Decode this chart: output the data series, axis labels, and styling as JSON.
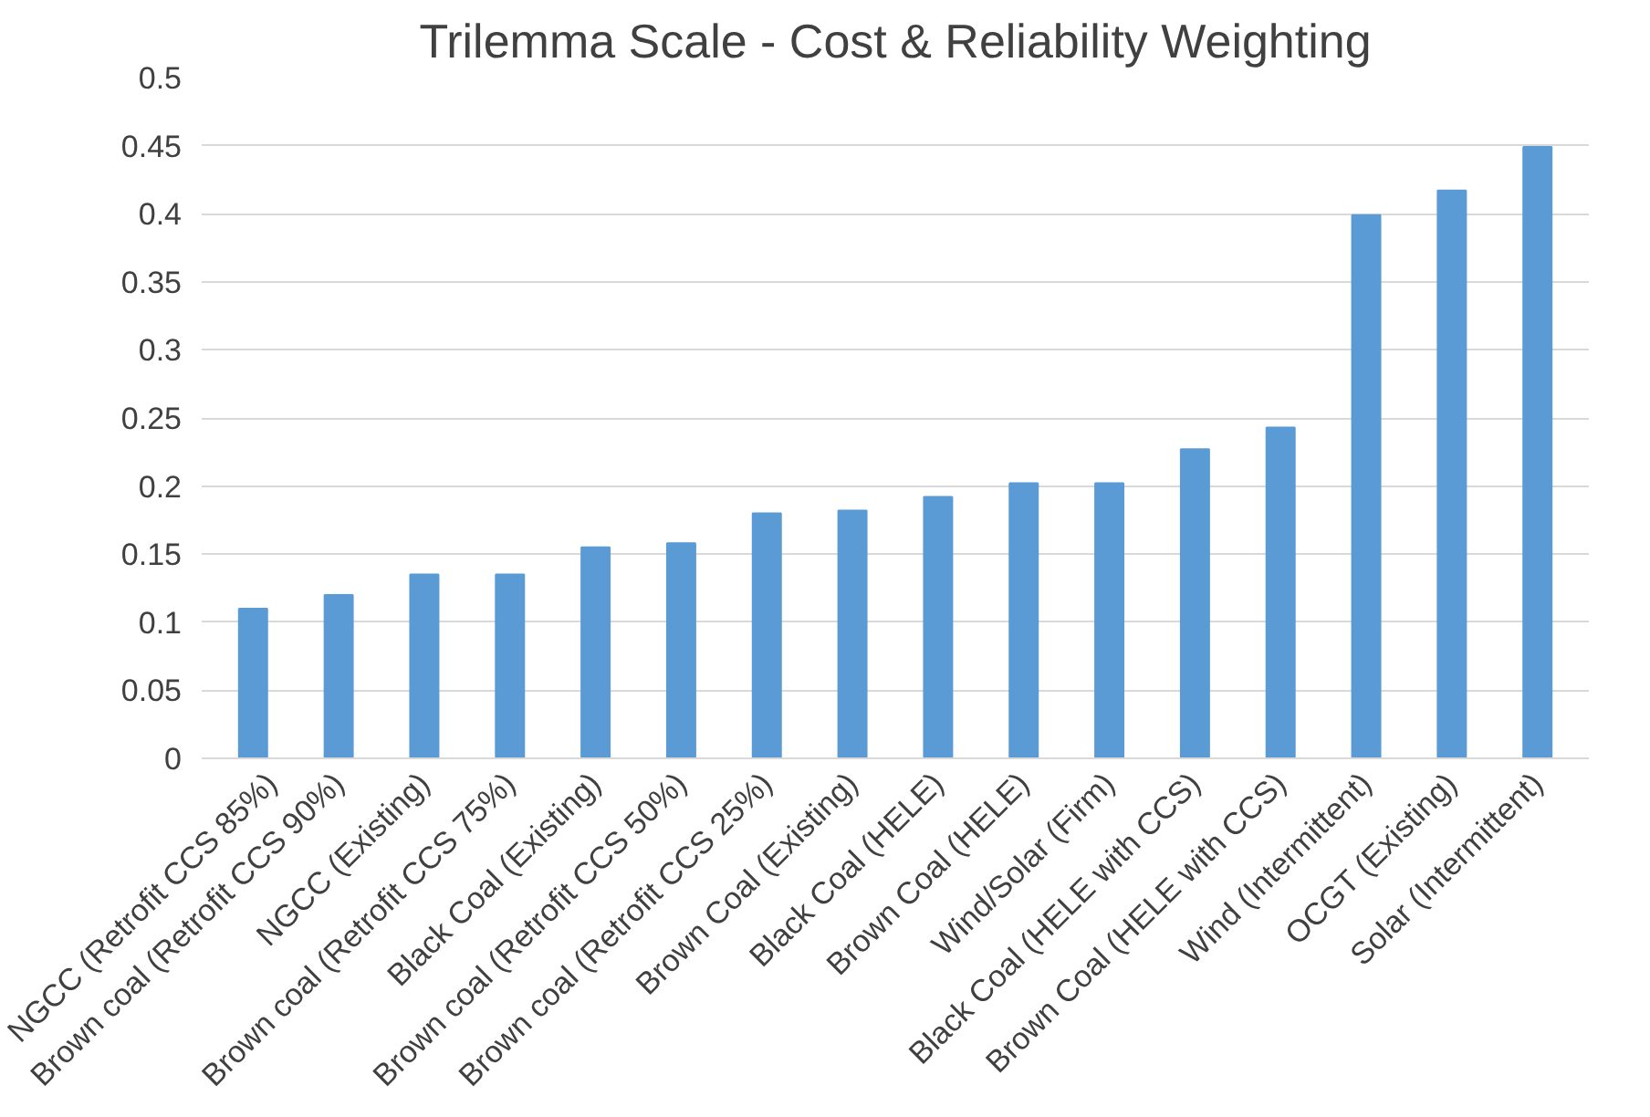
{
  "chart_data": {
    "type": "bar",
    "title": "Trilemma Scale - Cost & Reliability Weighting",
    "categories": [
      "NGCC (Retrofit CCS 85%)",
      "Brown coal (Retrofit CCS 90%)",
      "NGCC (Existing)",
      "Brown coal (Retrofit CCS 75%)",
      "Black Coal (Existing)",
      "Brown coal (Retrofit CCS 50%)",
      "Brown coal (Retrofit CCS 25%)",
      "Brown Coal (Existing)",
      "Black Coal (HELE)",
      "Brown Coal (HELE)",
      "Wind/Solar (Firm)",
      "Black Coal (HELE with CCS)",
      "Brown Coal (HELE with CCS)",
      "Wind (Intermittent)",
      "OCGT (Existing)",
      "Solar (Intermittent)"
    ],
    "values": [
      0.11,
      0.12,
      0.135,
      0.135,
      0.155,
      0.158,
      0.18,
      0.182,
      0.192,
      0.202,
      0.202,
      0.227,
      0.243,
      0.399,
      0.417,
      0.449
    ],
    "color": "#5b9bd5",
    "ylim": [
      0,
      0.5
    ],
    "yticks": [
      0,
      0.05,
      0.1,
      0.15,
      0.2,
      0.25,
      0.3,
      0.35,
      0.4,
      0.45,
      0.5
    ],
    "grid": "y"
  }
}
